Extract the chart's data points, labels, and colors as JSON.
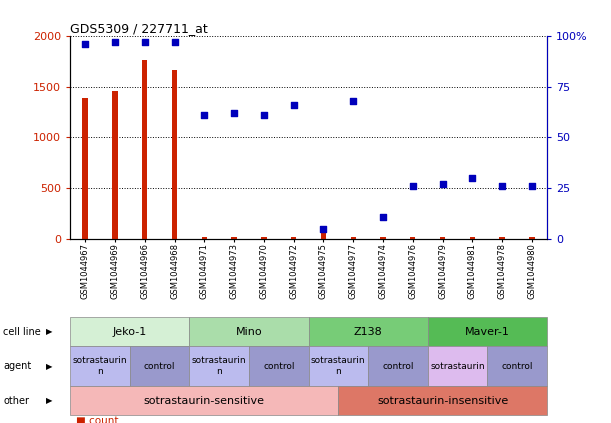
{
  "title": "GDS5309 / 227711_at",
  "samples": [
    "GSM1044967",
    "GSM1044969",
    "GSM1044966",
    "GSM1044968",
    "GSM1044971",
    "GSM1044973",
    "GSM1044970",
    "GSM1044972",
    "GSM1044975",
    "GSM1044977",
    "GSM1044974",
    "GSM1044976",
    "GSM1044979",
    "GSM1044981",
    "GSM1044978",
    "GSM1044980"
  ],
  "counts": [
    1390,
    1460,
    1760,
    1660,
    15,
    15,
    15,
    15,
    90,
    15,
    15,
    15,
    15,
    15,
    15,
    15
  ],
  "percentiles": [
    96,
    97,
    97,
    97,
    61,
    62,
    61,
    66,
    5,
    68,
    11,
    26,
    27,
    30,
    26,
    26
  ],
  "cell_lines": [
    {
      "label": "Jeko-1",
      "start": 0,
      "end": 4,
      "color": "#d5f0d5"
    },
    {
      "label": "Mino",
      "start": 4,
      "end": 8,
      "color": "#aaddaa"
    },
    {
      "label": "Z138",
      "start": 8,
      "end": 12,
      "color": "#77cc77"
    },
    {
      "label": "Maver-1",
      "start": 12,
      "end": 16,
      "color": "#55bb55"
    }
  ],
  "agents": [
    {
      "label": "sotrastaurin\nn",
      "start": 0,
      "end": 2,
      "color": "#bbbbee"
    },
    {
      "label": "control",
      "start": 2,
      "end": 4,
      "color": "#9999cc"
    },
    {
      "label": "sotrastaurin\nn",
      "start": 4,
      "end": 6,
      "color": "#bbbbee"
    },
    {
      "label": "control",
      "start": 6,
      "end": 8,
      "color": "#9999cc"
    },
    {
      "label": "sotrastaurin\nn",
      "start": 8,
      "end": 10,
      "color": "#bbbbee"
    },
    {
      "label": "control",
      "start": 10,
      "end": 12,
      "color": "#9999cc"
    },
    {
      "label": "sotrastaurin",
      "start": 12,
      "end": 14,
      "color": "#ddbbee"
    },
    {
      "label": "control",
      "start": 14,
      "end": 16,
      "color": "#9999cc"
    }
  ],
  "others": [
    {
      "label": "sotrastaurin-sensitive",
      "start": 0,
      "end": 9,
      "color": "#f5b8b8"
    },
    {
      "label": "sotrastaurin-insensitive",
      "start": 9,
      "end": 16,
      "color": "#dd7766"
    }
  ],
  "ylim_left": [
    0,
    2000
  ],
  "ylim_right": [
    0,
    100
  ],
  "yticks_left": [
    0,
    500,
    1000,
    1500,
    2000
  ],
  "yticks_right": [
    0,
    25,
    50,
    75,
    100
  ],
  "bar_color": "#cc2200",
  "dot_color": "#0000bb",
  "background_color": "#ffffff"
}
